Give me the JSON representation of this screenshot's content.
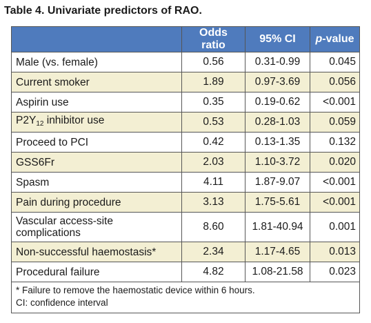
{
  "title": "Table 4. Univariate predictors of RAO.",
  "columns": {
    "odds_ratio": "Odds ratio",
    "ci": "95% CI",
    "p_italic": "p",
    "p_rest": "-value"
  },
  "rows": [
    {
      "label": "Male (vs. female)",
      "odds": "0.56",
      "ci": "0.31-0.99",
      "p": "0.045"
    },
    {
      "label": "Current smoker",
      "odds": "1.89",
      "ci": "0.97-3.69",
      "p": "0.056"
    },
    {
      "label": "Aspirin use",
      "odds": "0.35",
      "ci": "0.19-0.62",
      "p": "<0.001"
    },
    {
      "label_pre": "P2Y",
      "label_sub": "12",
      "label_post": " inhibitor use",
      "odds": "0.53",
      "ci": "0.28-1.03",
      "p": "0.059"
    },
    {
      "label": "Proceed to PCI",
      "odds": "0.42",
      "ci": "0.13-1.35",
      "p": "0.132"
    },
    {
      "label": "GSS6Fr",
      "odds": "2.03",
      "ci": "1.10-3.72",
      "p": "0.020"
    },
    {
      "label": "Spasm",
      "odds": "4.11",
      "ci": "1.87-9.07",
      "p": "<0.001"
    },
    {
      "label": "Pain during procedure",
      "odds": "3.13",
      "ci": "1.75-5.61",
      "p": "<0.001"
    },
    {
      "label_line1": "Vascular access-site",
      "label_line2": "complications",
      "odds": "8.60",
      "ci": "1.81-40.94",
      "p": "0.001"
    },
    {
      "label": "Non-successful haemostasis*",
      "odds": "2.34",
      "ci": "1.17-4.65",
      "p": "0.013"
    },
    {
      "label": "Procedural failure",
      "odds": "4.82",
      "ci": "1.08-21.58",
      "p": "0.023"
    }
  ],
  "footnotes": {
    "line1": "* Failure to remove the haemostatic device within 6 hours.",
    "line2": "CI: confidence interval"
  },
  "colors": {
    "header_bg": "#4f7bbd",
    "alt_row_bg": "#f3efd3"
  }
}
